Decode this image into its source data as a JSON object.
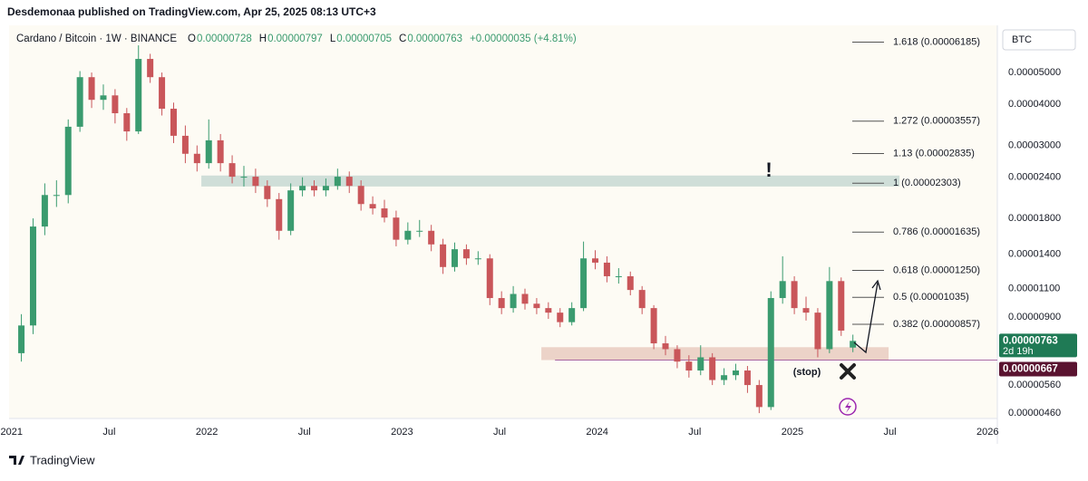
{
  "header": {
    "attribution": "Desdemonaa published on TradingView.com, Apr 25, 2025 08:13 UTC+3",
    "symbol": "Cardano / Bitcoin · 1W · BINANCE",
    "ohlc": [
      {
        "key": "O",
        "value": "0.00000728"
      },
      {
        "key": "H",
        "value": "0.00000797"
      },
      {
        "key": "L",
        "value": "0.00000705"
      },
      {
        "key": "C",
        "value": "0.00000763"
      }
    ],
    "change": "+0.00000035 (+4.81%)"
  },
  "footer": {
    "brand": "TradingView"
  },
  "chart_data": {
    "type": "candlestick",
    "currency": "BTC",
    "log_scale": true,
    "grid": false,
    "up_color": "#3a9b6f",
    "down_color": "#c9565a",
    "x": [
      2021.05,
      2021.11,
      2021.17,
      2021.23,
      2021.29,
      2021.35,
      2021.41,
      2021.47,
      2021.53,
      2021.59,
      2021.65,
      2021.71,
      2021.77,
      2021.83,
      2021.89,
      2021.95,
      2022.01,
      2022.07,
      2022.13,
      2022.19,
      2022.25,
      2022.31,
      2022.37,
      2022.43,
      2022.49,
      2022.55,
      2022.61,
      2022.67,
      2022.73,
      2022.79,
      2022.85,
      2022.91,
      2022.97,
      2023.03,
      2023.09,
      2023.15,
      2023.21,
      2023.27,
      2023.33,
      2023.39,
      2023.45,
      2023.51,
      2023.57,
      2023.63,
      2023.69,
      2023.75,
      2023.81,
      2023.87,
      2023.93,
      2023.99,
      2024.05,
      2024.11,
      2024.17,
      2024.23,
      2024.29,
      2024.35,
      2024.41,
      2024.47,
      2024.53,
      2024.59,
      2024.65,
      2024.71,
      2024.77,
      2024.83,
      2024.89,
      2024.95,
      2025.01,
      2025.07,
      2025.13,
      2025.19,
      2025.25,
      2025.31
    ],
    "open": [
      7e-06,
      8.5e-06,
      1.7e-05,
      2.12e-05,
      2.12e-05,
      3.42e-05,
      4.84e-05,
      4.13e-05,
      4.26e-05,
      3.76e-05,
      3.31e-05,
      5.5e-05,
      4.84e-05,
      3.88e-05,
      3.21e-05,
      2.83e-05,
      2.65e-05,
      3.11e-05,
      2.65e-05,
      2.41e-05,
      2.41e-05,
      2.26e-05,
      2.06e-05,
      1.65e-05,
      2.19e-05,
      2.26e-05,
      2.19e-05,
      2.26e-05,
      2.41e-05,
      2.26e-05,
      1.99e-05,
      1.93e-05,
      1.81e-05,
      1.55e-05,
      1.65e-05,
      1.65e-05,
      1.5e-05,
      1.28e-05,
      1.45e-05,
      1.36e-05,
      1.36e-05,
      1.03e-05,
      9.6e-06,
      1.06e-05,
      9.9e-06,
      9.6e-06,
      9.3e-06,
      8.7e-06,
      9.6e-06,
      1.36e-05,
      1.32e-05,
      1.2e-05,
      1.2e-05,
      1.09e-05,
      9.6e-06,
      7.5e-06,
      7.2e-06,
      6.6e-06,
      6.2e-06,
      6.8e-06,
      5.8e-06,
      6e-06,
      6.2e-06,
      5.6e-06,
      4.8e-06,
      1.03e-05,
      1.16e-05,
      9.6e-06,
      9.3e-06,
      7.2e-06,
      1.16e-05,
      7.28e-06
    ],
    "high": [
      9.2e-06,
      1.8e-05,
      2.3e-05,
      2.35e-05,
      3.6e-05,
      5.05e-05,
      5e-05,
      4.6e-05,
      4.45e-05,
      3.9e-05,
      6.05e-05,
      5.7e-05,
      5e-05,
      4.05e-05,
      3.45e-05,
      3e-05,
      3.6e-05,
      3.25e-05,
      2.8e-05,
      2.6e-05,
      2.55e-05,
      2.35e-05,
      2.15e-05,
      2.3e-05,
      2.4e-05,
      2.35e-05,
      2.38e-05,
      2.55e-05,
      2.5e-05,
      2.35e-05,
      2.1e-05,
      2.05e-05,
      1.9e-05,
      1.75e-05,
      1.78e-05,
      1.72e-05,
      1.56e-05,
      1.52e-05,
      1.5e-05,
      1.43e-05,
      1.4e-05,
      1.08e-05,
      1.12e-05,
      1.1e-05,
      1.03e-05,
      1e-05,
      9.6e-06,
      1e-05,
      1.53e-05,
      1.44e-05,
      1.38e-05,
      1.27e-05,
      1.24e-05,
      1.12e-05,
      9.8e-06,
      7.9e-06,
      7.4e-06,
      6.9e-06,
      7.4e-06,
      7e-06,
      6.3e-06,
      6.5e-06,
      6.4e-06,
      5.8e-06,
      1.08e-05,
      1.38e-05,
      1.2e-05,
      1.04e-05,
      9.6e-06,
      1.28e-05,
      1.19e-05,
      7.97e-06
    ],
    "low": [
      6.6e-06,
      8e-06,
      1.6e-05,
      1.95e-05,
      2e-05,
      3.3e-05,
      3.9e-05,
      3.85e-05,
      3.5e-05,
      3.1e-05,
      3.25e-05,
      4.65e-05,
      3.7e-05,
      3.05e-05,
      2.65e-05,
      2.5e-05,
      2.55e-05,
      2.5e-05,
      2.3e-05,
      2.25e-05,
      2.15e-05,
      1.95e-05,
      1.55e-05,
      1.6e-05,
      2.1e-05,
      2.1e-05,
      2.1e-05,
      2.2e-05,
      2.15e-05,
      1.9e-05,
      1.85e-05,
      1.75e-05,
      1.48e-05,
      1.5e-05,
      1.58e-05,
      1.43e-05,
      1.22e-05,
      1.24e-05,
      1.3e-05,
      1.3e-05,
      9.8e-06,
      9.2e-06,
      9.3e-06,
      9.5e-06,
      9.2e-06,
      8.9e-06,
      8.4e-06,
      8.5e-06,
      9.4e-06,
      1.26e-05,
      1.15e-05,
      1.14e-05,
      1.05e-05,
      9.2e-06,
      7.2e-06,
      6.9e-06,
      6.3e-06,
      5.9e-06,
      6e-06,
      5.6e-06,
      5.6e-06,
      5.8e-06,
      5.3e-06,
      4.6e-06,
      4.7e-06,
      9.9e-06,
      9.2e-06,
      8.8e-06,
      6.8e-06,
      7e-06,
      7.9e-06,
      7.05e-06
    ],
    "close": [
      8.5e-06,
      1.7e-05,
      2.12e-05,
      2.12e-05,
      3.42e-05,
      4.84e-05,
      4.13e-05,
      4.26e-05,
      3.76e-05,
      3.31e-05,
      5.5e-05,
      4.84e-05,
      3.88e-05,
      3.21e-05,
      2.83e-05,
      2.65e-05,
      3.11e-05,
      2.65e-05,
      2.41e-05,
      2.41e-05,
      2.26e-05,
      2.06e-05,
      1.65e-05,
      2.19e-05,
      2.26e-05,
      2.19e-05,
      2.26e-05,
      2.41e-05,
      2.26e-05,
      1.99e-05,
      1.93e-05,
      1.81e-05,
      1.55e-05,
      1.65e-05,
      1.65e-05,
      1.5e-05,
      1.28e-05,
      1.45e-05,
      1.36e-05,
      1.36e-05,
      1.03e-05,
      9.6e-06,
      1.06e-05,
      9.9e-06,
      9.6e-06,
      9.3e-06,
      8.7e-06,
      9.6e-06,
      1.36e-05,
      1.32e-05,
      1.2e-05,
      1.2e-05,
      1.09e-05,
      9.6e-06,
      7.5e-06,
      7.2e-06,
      6.6e-06,
      6.2e-06,
      6.8e-06,
      5.8e-06,
      6e-06,
      6.2e-06,
      5.6e-06,
      4.8e-06,
      1.03e-05,
      1.16e-05,
      9.6e-06,
      9.3e-06,
      7.2e-06,
      1.16e-05,
      8.2e-06,
      7.63e-06
    ],
    "xlim": [
      2020.987,
      2026.05
    ],
    "xticks": [
      {
        "value": 2021,
        "label": "2021"
      },
      {
        "value": 2021.5,
        "label": "Jul"
      },
      {
        "value": 2022,
        "label": "2022"
      },
      {
        "value": 2022.5,
        "label": "Jul"
      },
      {
        "value": 2023,
        "label": "2023"
      },
      {
        "value": 2023.5,
        "label": "Jul"
      },
      {
        "value": 2024,
        "label": "2024"
      },
      {
        "value": 2024.5,
        "label": "Jul"
      },
      {
        "value": 2025,
        "label": "2025"
      },
      {
        "value": 2025.5,
        "label": "Jul"
      },
      {
        "value": 2026,
        "label": "2026"
      }
    ],
    "ylim": [
      4.43e-06,
      6.87e-05
    ],
    "yticks": [
      {
        "value": 5e-05,
        "label": "0.00005000"
      },
      {
        "value": 4e-05,
        "label": "0.00004000"
      },
      {
        "value": 3e-05,
        "label": "0.00003000"
      },
      {
        "value": 2.4e-05,
        "label": "0.00002400"
      },
      {
        "value": 1.8e-05,
        "label": "0.00001800"
      },
      {
        "value": 1.4e-05,
        "label": "0.00001400"
      },
      {
        "value": 1.1e-05,
        "label": "0.00001100"
      },
      {
        "value": 9e-06,
        "label": "0.00000900"
      },
      {
        "value": 5.6e-06,
        "label": "0.00000560"
      },
      {
        "value": 4.6e-06,
        "label": "0.00000460"
      }
    ],
    "levels": [
      {
        "value": 6.185e-05,
        "label": "1.618 (0.00006185)"
      },
      {
        "value": 3.557e-05,
        "label": "1.272 (0.00003557)"
      },
      {
        "value": 2.835e-05,
        "label": "1.13 (0.00002835)"
      },
      {
        "value": 2.303e-05,
        "label": "1 (0.00002303)"
      },
      {
        "value": 1.635e-05,
        "label": "0.786 (0.00001635)"
      },
      {
        "value": 1.25e-05,
        "label": "0.618 (0.00001250)"
      },
      {
        "value": 1.035e-05,
        "label": "0.5 (0.00001035)"
      },
      {
        "value": 8.57e-06,
        "label": "0.382 (0.00000857)"
      }
    ],
    "zones": [
      {
        "xlim": [
          2021.972,
          2025.549
        ],
        "ylim": [
          2.25e-05,
          2.43e-05
        ],
        "color": "#cfded8"
      },
      {
        "xlim": [
          2023.714,
          2025.493
        ],
        "ylim": [
          6.67e-06,
          7.3e-06
        ],
        "color": "#ecd3c8"
      }
    ],
    "stop": {
      "value": 6.67e-06,
      "label": "0.00000667",
      "start": 2023.784,
      "color": "#8e3b8e"
    },
    "price_tag": {
      "value": 7.63e-06,
      "label": "0.00000763",
      "countdown": "2d 19h"
    },
    "annotations": {
      "alert": "!",
      "stop": "(stop)"
    }
  }
}
